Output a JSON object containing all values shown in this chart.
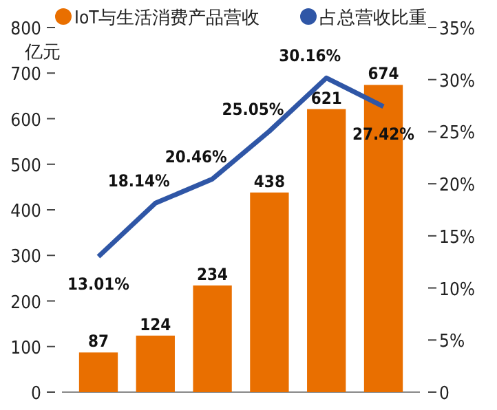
{
  "chart_data": {
    "type": "bar",
    "ylabel": "亿元",
    "categories": [
      null,
      null,
      null,
      null,
      null,
      null
    ],
    "series": [
      {
        "name": "IoT与生活消费产品营收",
        "color": "#e96f00",
        "values": [
          87,
          124,
          234,
          438,
          621,
          674
        ]
      },
      {
        "name": "占总营收比重",
        "type": "line",
        "axis": "y2",
        "color": "#2f56a6",
        "values": [
          13.01,
          18.14,
          20.46,
          25.05,
          30.16,
          27.42
        ],
        "value_labels": [
          "13.01%",
          "18.14%",
          "20.46%",
          "25.05%",
          "30.16%",
          "27.42%"
        ]
      }
    ],
    "data_labels": true,
    "ylim": [
      0,
      800
    ],
    "yticks": [
      0,
      100,
      200,
      300,
      400,
      500,
      600,
      700,
      800
    ],
    "y2lim": [
      0,
      35
    ],
    "y2ticks": [
      0,
      {
        "value": 5,
        "label": "5%"
      },
      {
        "value": 10,
        "label": "10%"
      },
      {
        "value": 15,
        "label": "15%"
      },
      {
        "value": 20,
        "label": "20%"
      },
      {
        "value": 25,
        "label": "25%"
      },
      {
        "value": 30,
        "label": "30%"
      },
      {
        "value": 35,
        "label": "35%"
      }
    ],
    "legend": "top",
    "grid": false,
    "marker": "none",
    "line_style": "solid"
  }
}
